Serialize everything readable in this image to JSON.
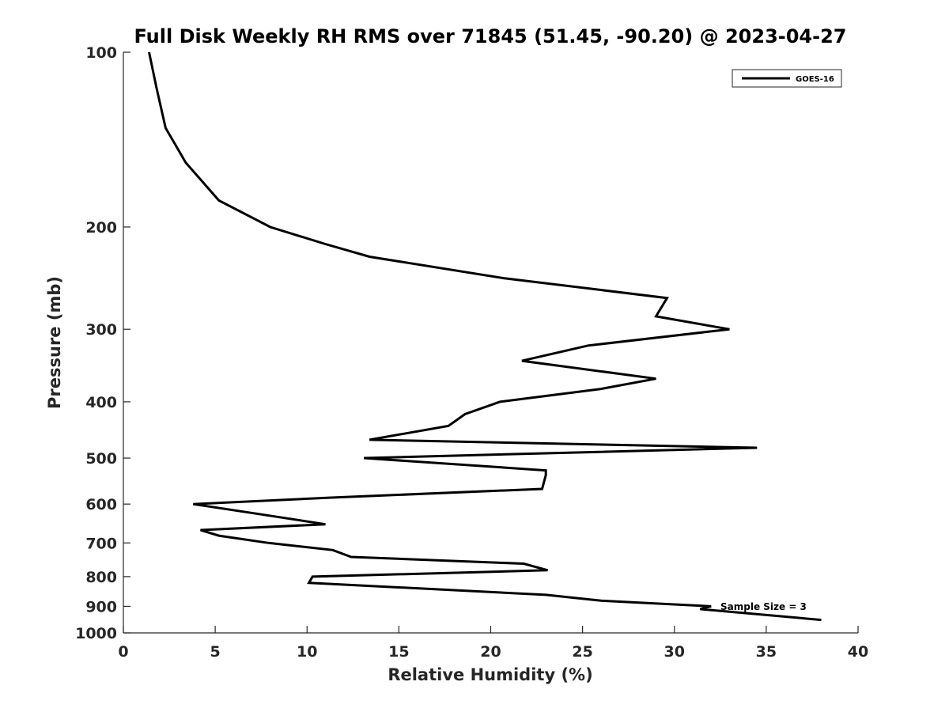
{
  "chart_data": {
    "type": "line",
    "title": "Full Disk Weekly RH RMS over 71845 (51.45, -90.20) @ 2023-04-27",
    "xlabel": "Relative Humidity (%)",
    "ylabel": "Pressure (mb)",
    "xlim": [
      0,
      40
    ],
    "ylim": [
      100,
      1000
    ],
    "y_scale": "log",
    "y_reversed": true,
    "x_ticks": [
      0,
      5,
      10,
      15,
      20,
      25,
      30,
      35,
      40
    ],
    "y_ticks": [
      100,
      200,
      300,
      400,
      500,
      600,
      700,
      800,
      900,
      1000
    ],
    "grid": false,
    "legend_position": "top-right",
    "annotation": "Sample Size = 3",
    "series": [
      {
        "name": "GOES-16",
        "color": "#000000",
        "points": [
          [
            1.4,
            100
          ],
          [
            1.8,
            115
          ],
          [
            2.3,
            135
          ],
          [
            3.4,
            155
          ],
          [
            5.2,
            180
          ],
          [
            8.0,
            200
          ],
          [
            11.0,
            214
          ],
          [
            13.4,
            225
          ],
          [
            20.7,
            245
          ],
          [
            29.6,
            265
          ],
          [
            29.0,
            285
          ],
          [
            33.0,
            300
          ],
          [
            25.3,
            320
          ],
          [
            21.7,
            340
          ],
          [
            29.0,
            365
          ],
          [
            26.0,
            380
          ],
          [
            20.5,
            400
          ],
          [
            18.6,
            420
          ],
          [
            17.7,
            440
          ],
          [
            13.4,
            465
          ],
          [
            34.5,
            480
          ],
          [
            13.1,
            500
          ],
          [
            23.0,
            525
          ],
          [
            23.0,
            535
          ],
          [
            22.8,
            565
          ],
          [
            11.2,
            585
          ],
          [
            3.8,
            600
          ],
          [
            7.5,
            625
          ],
          [
            11.0,
            650
          ],
          [
            4.2,
            665
          ],
          [
            5.2,
            680
          ],
          [
            7.9,
            700
          ],
          [
            11.4,
            720
          ],
          [
            12.4,
            740
          ],
          [
            21.8,
            760
          ],
          [
            23.1,
            780
          ],
          [
            10.3,
            800
          ],
          [
            10.1,
            820
          ],
          [
            23.0,
            860
          ],
          [
            26.0,
            880
          ],
          [
            32.0,
            900
          ],
          [
            31.4,
            910
          ],
          [
            38.0,
            950
          ]
        ]
      }
    ]
  }
}
